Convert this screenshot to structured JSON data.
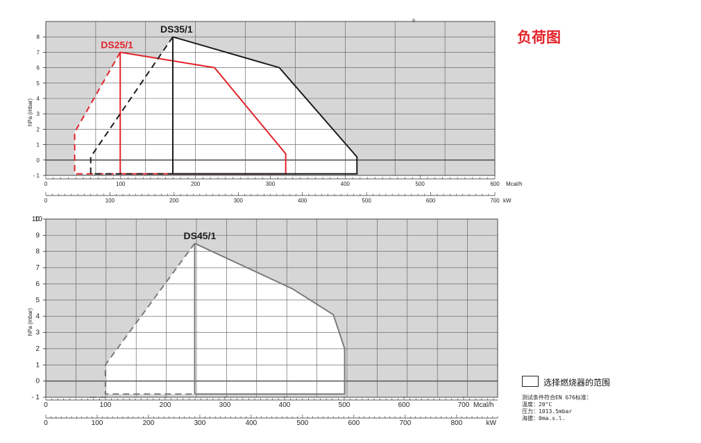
{
  "page": {
    "title": "负荷图",
    "page_number": "9",
    "legend_label": "选择燃烧器的范围",
    "notes": [
      "测试条件符合EN 676标准：",
      "温度：20°C",
      "压力：1013.5mbar",
      "海拔：0ma.s.l."
    ]
  },
  "colors": {
    "red": "#e3222a",
    "black": "#1a1a1a",
    "gray": "#7a7a7a",
    "shade": "#d6d6d6"
  },
  "chart_data": [
    {
      "type": "line",
      "ylabel": "hPa (mbar)",
      "x_units_top": "Mcal/h",
      "x_units_bottom": "kW",
      "xlim_kw": [
        0,
        700
      ],
      "xlim_mcal": [
        0,
        600
      ],
      "ylim": [
        -1,
        9
      ],
      "y_ticks": [
        -1,
        0,
        1,
        2,
        3,
        4,
        5,
        6,
        7,
        8
      ],
      "mcal_ticks": [
        0,
        100,
        200,
        300,
        400,
        500,
        600
      ],
      "kw_ticks": [
        0,
        100,
        200,
        300,
        400,
        500,
        600,
        700
      ],
      "series": [
        {
          "name": "DS25/1",
          "color": "#e3222a",
          "envelope": [
            [
              116,
              7
            ],
            [
              263,
              6
            ],
            [
              374,
              0.4
            ],
            [
              374,
              -0.9
            ],
            [
              116,
              -0.9
            ]
          ],
          "dashed": [
            [
              116,
              7
            ],
            [
              45,
              1.8
            ],
            [
              45,
              -0.9
            ],
            [
              116,
              -0.9
            ]
          ],
          "inner": [
            [
              116,
              7
            ],
            [
              116,
              -0.9
            ]
          ]
        },
        {
          "name": "DS35/1",
          "color": "#1a1a1a",
          "envelope": [
            [
              198,
              8
            ],
            [
              364,
              6
            ],
            [
              485,
              0.2
            ],
            [
              485,
              -0.9
            ],
            [
              198,
              -0.9
            ]
          ],
          "dashed": [
            [
              198,
              8
            ],
            [
              70,
              0.2
            ],
            [
              70,
              -0.9
            ],
            [
              198,
              -0.9
            ]
          ],
          "inner": [
            [
              198,
              8
            ],
            [
              198,
              -0.9
            ]
          ]
        }
      ]
    },
    {
      "type": "line",
      "ylabel": "hPa (mbar)",
      "x_units_top": "Mcal/h",
      "x_units_bottom": "kW",
      "xlim_kw": [
        0,
        880
      ],
      "xlim_mcal": [
        0,
        757
      ],
      "ylim": [
        -1,
        10
      ],
      "y_ticks": [
        -1,
        0,
        1,
        2,
        3,
        4,
        5,
        6,
        7,
        8,
        9,
        10
      ],
      "mcal_ticks": [
        0,
        100,
        200,
        300,
        400,
        500,
        600,
        700
      ],
      "kw_ticks": [
        0,
        100,
        200,
        300,
        400,
        500,
        600,
        700,
        800
      ],
      "series": [
        {
          "name": "DS45/1",
          "color": "#7a7a7a",
          "envelope": [
            [
              290,
              8.5
            ],
            [
              480,
              5.7
            ],
            [
              560,
              4.1
            ],
            [
              582,
              2
            ],
            [
              582,
              -0.8
            ],
            [
              290,
              -0.8
            ]
          ],
          "dashed": [
            [
              290,
              8.5
            ],
            [
              116,
              1
            ],
            [
              116,
              -0.8
            ],
            [
              290,
              -0.8
            ]
          ],
          "extra_dashed": [
            [
              86,
              -1
            ],
            [
              116,
              -1
            ]
          ],
          "inner": [
            [
              290,
              8.5
            ],
            [
              290,
              -0.8
            ]
          ]
        }
      ]
    }
  ]
}
